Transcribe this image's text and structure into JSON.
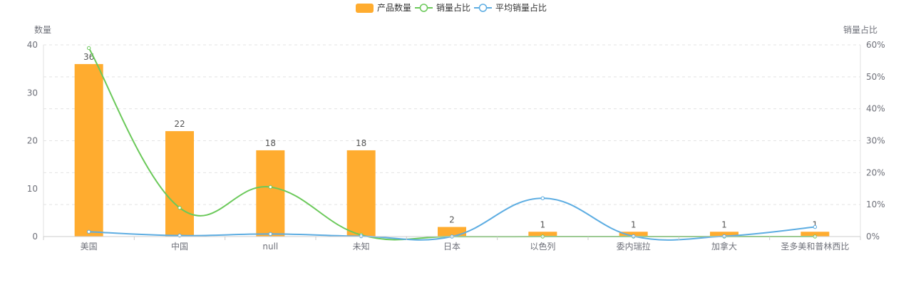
{
  "chart_data": {
    "type": "bar",
    "categories": [
      "美国",
      "中国",
      "null",
      "未知",
      "日本",
      "以色列",
      "委内瑞拉",
      "加拿大",
      "圣多美和普林西比"
    ],
    "series": [
      {
        "name": "产品数量",
        "type": "bar",
        "axis": "left",
        "values": [
          36,
          22,
          18,
          18,
          2,
          1,
          1,
          1,
          1
        ]
      },
      {
        "name": "销量占比",
        "type": "line",
        "axis": "right",
        "values": [
          59.0,
          9.0,
          15.5,
          0.5,
          0,
          0,
          0,
          0,
          0
        ]
      },
      {
        "name": "平均销量占比",
        "type": "line",
        "axis": "right",
        "values": [
          1.5,
          0.3,
          0.8,
          0.1,
          0,
          12.0,
          0.1,
          0.1,
          3.0
        ]
      }
    ],
    "ylabel": "数量",
    "y2label": "销量占比",
    "ylim": [
      0,
      40
    ],
    "y2lim": [
      0,
      60
    ],
    "yticks": [
      "0",
      "10",
      "20",
      "30",
      "40"
    ],
    "y2ticks": [
      "0%",
      "10%",
      "20%",
      "30%",
      "40%",
      "50%",
      "60%"
    ],
    "legend_position": "top-center",
    "grid": true,
    "colors": {
      "bar": "#ffac2f",
      "line1": "#6bc95a",
      "line2": "#5dade2"
    }
  }
}
